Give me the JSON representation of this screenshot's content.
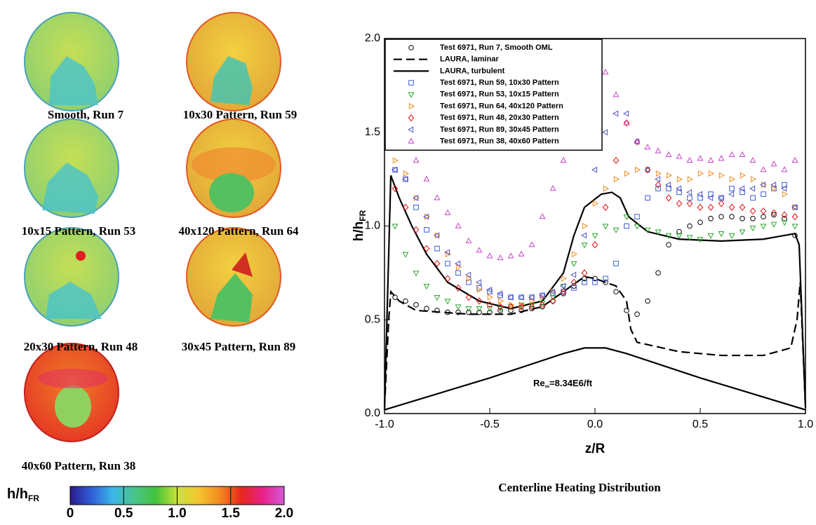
{
  "images": [
    {
      "caption": "Smooth, Run 7"
    },
    {
      "caption": "10x30 Pattern, Run 59"
    },
    {
      "caption": "10x15 Pattern, Run 53"
    },
    {
      "caption": "40x120 Pattern, Run 64"
    },
    {
      "caption": "20x30 Pattern, Run 48"
    },
    {
      "caption": "30x45 Pattern, Run 89"
    },
    {
      "caption": "40x60 Pattern, Run 38"
    }
  ],
  "colorbar": {
    "label": "h/h",
    "label_sub": "FR",
    "lim": [
      0,
      2
    ],
    "ticks": [
      0,
      0.5,
      {
        "value": 1,
        "label": "1.0"
      },
      1.5,
      {
        "value": 2,
        "label": "2.0"
      }
    ],
    "colors": [
      "#2a1a8c",
      "#2f5fd8",
      "#3bb8e8",
      "#49c48a",
      "#44c23a",
      "#c9e23a",
      "#f5c531",
      "#f28a1e",
      "#e8261c",
      "#e8208a",
      "#d45ad8"
    ]
  },
  "chart_data": {
    "type": "scatter",
    "title": "Centerline Heating Distribution",
    "xlabel": "z/R",
    "ylabel": "h/h",
    "ylabel_sub": "FR",
    "annotation": {
      "text": "Re",
      "sub": "∞",
      "rest": "=8.34E6/ft"
    },
    "xlim": [
      -1,
      1
    ],
    "ylim": [
      0,
      2
    ],
    "xticks": [
      {
        "value": -1,
        "label": "-1.0"
      },
      -0.5,
      {
        "value": 0,
        "label": "0.0"
      },
      0.5,
      {
        "value": 1,
        "label": "1.0"
      }
    ],
    "yticks": [
      {
        "value": 0,
        "label": "0.0"
      },
      0.5,
      {
        "value": 1,
        "label": "1.0"
      },
      1.5,
      {
        "value": 2,
        "label": "2.0"
      }
    ],
    "legend": "upper left",
    "series": [
      {
        "name": "Test 6971, Run 7, Smooth OML",
        "marker": "circle",
        "color": "#000000",
        "x": [
          -0.95,
          -0.9,
          -0.85,
          -0.8,
          -0.75,
          -0.7,
          -0.65,
          -0.6,
          -0.55,
          -0.5,
          -0.45,
          -0.4,
          -0.35,
          -0.3,
          -0.25,
          -0.2,
          -0.15,
          -0.1,
          -0.05,
          0,
          0.05,
          0.1,
          0.15,
          0.2,
          0.25,
          0.3,
          0.35,
          0.4,
          0.45,
          0.5,
          0.55,
          0.6,
          0.65,
          0.7,
          0.75,
          0.8,
          0.85,
          0.9,
          0.95
        ],
        "values": [
          0.62,
          0.6,
          0.58,
          0.56,
          0.55,
          0.54,
          0.54,
          0.54,
          0.54,
          0.54,
          0.55,
          0.55,
          0.55,
          0.56,
          0.57,
          0.6,
          0.64,
          0.68,
          0.72,
          0.72,
          0.7,
          0.65,
          0.55,
          0.53,
          0.6,
          0.75,
          0.9,
          0.97,
          1.0,
          1.02,
          1.04,
          1.05,
          1.05,
          1.04,
          1.04,
          1.05,
          1.06,
          1.04,
          0.95
        ]
      },
      {
        "name": "LAURA, laminar",
        "line": "dashed",
        "color": "#000000",
        "x": [
          -1,
          -0.98,
          -0.97,
          -0.93,
          -0.85,
          -0.6,
          -0.4,
          -0.25,
          -0.15,
          -0.05,
          0,
          0.1,
          0.15,
          0.17,
          0.2,
          0.4,
          0.6,
          0.8,
          0.93,
          0.96,
          0.975,
          1
        ],
        "values": [
          0.03,
          0.5,
          0.65,
          0.6,
          0.55,
          0.53,
          0.53,
          0.57,
          0.65,
          0.73,
          0.72,
          0.68,
          0.6,
          0.45,
          0.38,
          0.33,
          0.31,
          0.31,
          0.35,
          0.5,
          0.7,
          0.03
        ]
      },
      {
        "name": "LAURA, turbulent",
        "line": "solid",
        "color": "#000000",
        "x": [
          -1,
          -0.97,
          -0.93,
          -0.87,
          -0.8,
          -0.7,
          -0.55,
          -0.4,
          -0.25,
          -0.15,
          -0.1,
          -0.05,
          0.03,
          0.08,
          0.12,
          0.16,
          0.25,
          0.4,
          0.6,
          0.8,
          0.95,
          0.97,
          1
        ],
        "values": [
          0.02,
          1.27,
          1.15,
          1.0,
          0.85,
          0.7,
          0.6,
          0.56,
          0.6,
          0.75,
          0.95,
          1.1,
          1.17,
          1.18,
          1.15,
          1.05,
          0.97,
          0.93,
          0.92,
          0.93,
          0.96,
          0.9,
          0.03
        ]
      },
      {
        "name": "Test 6971, Run 59, 10x30 Pattern",
        "marker": "square",
        "color": "#3a5bd0",
        "x": [
          -0.95,
          -0.9,
          -0.85,
          -0.8,
          -0.75,
          -0.7,
          -0.65,
          -0.6,
          -0.55,
          -0.5,
          -0.45,
          -0.4,
          -0.35,
          -0.3,
          -0.25,
          -0.2,
          -0.15,
          -0.1,
          -0.05,
          0,
          0.05,
          0.1,
          0.15,
          0.2,
          0.25,
          0.3,
          0.35,
          0.4,
          0.45,
          0.5,
          0.55,
          0.6,
          0.65,
          0.7,
          0.75,
          0.8,
          0.85,
          0.9,
          0.95
        ],
        "values": [
          1.3,
          1.25,
          1.1,
          0.98,
          0.88,
          0.8,
          0.75,
          0.7,
          0.67,
          0.65,
          0.63,
          0.62,
          0.62,
          0.62,
          0.63,
          0.64,
          0.65,
          0.67,
          0.7,
          0.7,
          0.72,
          0.8,
          1.0,
          1.05,
          1.15,
          1.2,
          1.2,
          1.18,
          1.15,
          1.15,
          1.17,
          1.15,
          1.2,
          1.18,
          1.15,
          1.17,
          1.2,
          1.22,
          1.1
        ]
      },
      {
        "name": "Test 6971, Run 53, 10x15 Pattern",
        "marker": "triangle-down",
        "color": "#2aa82a",
        "x": [
          -0.95,
          -0.9,
          -0.85,
          -0.8,
          -0.75,
          -0.7,
          -0.65,
          -0.6,
          -0.55,
          -0.5,
          -0.45,
          -0.4,
          -0.35,
          -0.3,
          -0.25,
          -0.2,
          -0.15,
          -0.1,
          -0.05,
          0,
          0.05,
          0.1,
          0.15,
          0.2,
          0.25,
          0.3,
          0.35,
          0.4,
          0.45,
          0.5,
          0.55,
          0.6,
          0.65,
          0.7,
          0.75,
          0.8,
          0.85,
          0.9,
          0.95
        ],
        "values": [
          1.0,
          0.85,
          0.75,
          0.68,
          0.62,
          0.6,
          0.57,
          0.56,
          0.56,
          0.56,
          0.56,
          0.57,
          0.58,
          0.58,
          0.59,
          0.62,
          0.68,
          0.8,
          0.9,
          0.95,
          1.0,
          0.98,
          1.05,
          1.0,
          0.98,
          0.97,
          0.95,
          0.95,
          0.94,
          0.93,
          0.95,
          0.96,
          0.95,
          0.97,
          0.99,
          1.0,
          1.01,
          1.02,
          1.0
        ]
      },
      {
        "name": "Test 6971, Run 64, 40x120 Pattern",
        "marker": "triangle-right",
        "color": "#f08a1c",
        "x": [
          -0.95,
          -0.9,
          -0.85,
          -0.8,
          -0.75,
          -0.7,
          -0.65,
          -0.6,
          -0.55,
          -0.5,
          -0.45,
          -0.4,
          -0.35,
          -0.3,
          -0.25,
          -0.2,
          -0.15,
          -0.1,
          -0.05,
          0,
          0.05,
          0.1,
          0.15,
          0.2,
          0.25,
          0.3,
          0.35,
          0.4,
          0.45,
          0.5,
          0.55,
          0.6,
          0.65,
          0.7,
          0.75,
          0.8,
          0.85,
          0.9,
          0.95
        ],
        "values": [
          1.35,
          1.28,
          1.15,
          1.05,
          0.95,
          0.85,
          0.78,
          0.72,
          0.66,
          0.62,
          0.6,
          0.58,
          0.58,
          0.6,
          0.62,
          0.65,
          0.72,
          0.85,
          1.0,
          1.12,
          1.2,
          1.25,
          1.28,
          1.3,
          1.3,
          1.28,
          1.27,
          1.25,
          1.25,
          1.28,
          1.28,
          1.27,
          1.25,
          1.27,
          1.25,
          1.22,
          1.2,
          1.17,
          1.1
        ]
      },
      {
        "name": "Test 6971, Run 48, 20x30 Pattern",
        "marker": "diamond",
        "color": "#dd1111",
        "x": [
          -0.95,
          -0.9,
          -0.85,
          -0.8,
          -0.75,
          -0.7,
          -0.65,
          -0.6,
          -0.55,
          -0.5,
          -0.45,
          -0.4,
          -0.35,
          -0.3,
          -0.25,
          -0.2,
          -0.15,
          -0.1,
          -0.05,
          0,
          0.05,
          0.1,
          0.15,
          0.2,
          0.25,
          0.3,
          0.35,
          0.4,
          0.45,
          0.5,
          0.55,
          0.6,
          0.65,
          0.7,
          0.75,
          0.8,
          0.85,
          0.9,
          0.95
        ],
        "values": [
          1.2,
          1.1,
          0.98,
          0.88,
          0.8,
          0.72,
          0.67,
          0.62,
          0.6,
          0.58,
          0.57,
          0.57,
          0.57,
          0.57,
          0.58,
          0.6,
          0.65,
          0.7,
          0.75,
          0.9,
          1.1,
          1.35,
          1.55,
          1.45,
          1.3,
          1.22,
          1.15,
          1.12,
          1.12,
          1.1,
          1.1,
          1.12,
          1.1,
          1.1,
          1.08,
          1.08,
          1.07,
          1.06,
          1.05
        ]
      },
      {
        "name": "Test 6971, Run 89, 30x45 Pattern",
        "marker": "triangle-left",
        "color": "#5555cc",
        "x": [
          -0.95,
          -0.9,
          -0.85,
          -0.8,
          -0.75,
          -0.7,
          -0.65,
          -0.6,
          -0.55,
          -0.5,
          -0.45,
          -0.4,
          -0.35,
          -0.3,
          -0.25,
          -0.2,
          -0.15,
          -0.1,
          -0.05,
          0,
          0.05,
          0.1,
          0.15,
          0.2,
          0.25,
          0.3,
          0.35,
          0.4,
          0.45,
          0.5,
          0.55,
          0.6,
          0.65,
          0.7,
          0.75,
          0.8,
          0.85,
          0.9,
          0.95
        ],
        "values": [
          1.3,
          1.25,
          1.15,
          1.05,
          0.95,
          0.86,
          0.8,
          0.74,
          0.7,
          0.66,
          0.64,
          0.62,
          0.62,
          0.62,
          0.63,
          0.65,
          0.68,
          0.74,
          0.95,
          1.3,
          1.5,
          1.6,
          1.6,
          1.45,
          1.3,
          1.25,
          1.22,
          1.2,
          1.18,
          1.17,
          1.15,
          1.15,
          1.17,
          1.2,
          1.2,
          1.22,
          1.22,
          1.2,
          1.1
        ]
      },
      {
        "name": "Test 6971, Run 38, 40x60 Pattern",
        "marker": "triangle-up",
        "color": "#c844c8",
        "x": [
          -0.95,
          -0.9,
          -0.85,
          -0.8,
          -0.75,
          -0.7,
          -0.65,
          -0.6,
          -0.55,
          -0.5,
          -0.45,
          -0.4,
          -0.35,
          -0.3,
          -0.25,
          -0.2,
          -0.15,
          -0.1,
          -0.05,
          0,
          0.05,
          0.1,
          0.15,
          0.2,
          0.25,
          0.3,
          0.35,
          0.4,
          0.45,
          0.5,
          0.55,
          0.6,
          0.65,
          0.7,
          0.75,
          0.8,
          0.85,
          0.9,
          0.95
        ],
        "values": [
          1.5,
          1.45,
          1.35,
          1.25,
          1.15,
          1.07,
          1.0,
          0.92,
          0.87,
          0.84,
          0.83,
          0.84,
          0.85,
          0.9,
          1.05,
          1.2,
          1.35,
          1.5,
          1.6,
          1.7,
          1.82,
          1.7,
          1.55,
          1.45,
          1.42,
          1.4,
          1.38,
          1.37,
          1.35,
          1.36,
          1.35,
          1.36,
          1.38,
          1.38,
          1.35,
          1.3,
          1.33,
          1.3,
          1.35
        ]
      },
      {
        "line": "solid",
        "color": "#000000",
        "x": [
          -1,
          -0.5,
          -0.15,
          -0.05,
          0,
          0.05,
          0.15,
          0.5,
          1
        ],
        "values": [
          0.02,
          0.19,
          0.32,
          0.35,
          0.35,
          0.35,
          0.32,
          0.19,
          0.02
        ]
      }
    ]
  }
}
